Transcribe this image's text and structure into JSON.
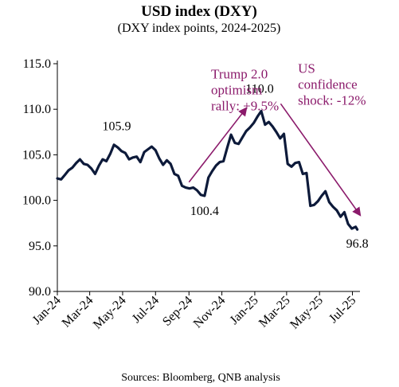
{
  "chart_data": {
    "type": "line",
    "title": "USD index (DXY)",
    "subtitle": "(DXY index points, 2024-2025)",
    "xlabel": "",
    "ylabel": "",
    "ylim": [
      90,
      115
    ],
    "yticks": [
      "90.0",
      "95.0",
      "100.0",
      "105.0",
      "110.0",
      "115.0"
    ],
    "xlim": [
      "2024-01-01",
      "2025-07-15"
    ],
    "xticks": [
      {
        "label": "Jan-24",
        "date": "2024-01-01"
      },
      {
        "label": "Mar-24",
        "date": "2024-03-01"
      },
      {
        "label": "May-24",
        "date": "2024-05-01"
      },
      {
        "label": "Jul-24",
        "date": "2024-07-01"
      },
      {
        "label": "Sep-24",
        "date": "2024-09-01"
      },
      {
        "label": "Nov-24",
        "date": "2024-11-01"
      },
      {
        "label": "Jan-25",
        "date": "2025-01-01"
      },
      {
        "label": "Mar-25",
        "date": "2025-03-01"
      },
      {
        "label": "May-25",
        "date": "2025-05-01"
      },
      {
        "label": "Jul-25",
        "date": "2025-07-01"
      }
    ],
    "grid": false,
    "line_color": "#0d1a3a",
    "annotation_color": "#8b1a6b",
    "series": [
      {
        "points": [
          [
            "2024-01-01",
            102.4
          ],
          [
            "2024-01-08",
            102.3
          ],
          [
            "2024-01-15",
            102.8
          ],
          [
            "2024-01-22",
            103.3
          ],
          [
            "2024-01-29",
            103.6
          ],
          [
            "2024-02-05",
            104.1
          ],
          [
            "2024-02-12",
            104.5
          ],
          [
            "2024-02-19",
            104.0
          ],
          [
            "2024-02-26",
            103.9
          ],
          [
            "2024-03-04",
            103.5
          ],
          [
            "2024-03-11",
            102.9
          ],
          [
            "2024-03-18",
            103.8
          ],
          [
            "2024-03-25",
            104.5
          ],
          [
            "2024-04-01",
            104.3
          ],
          [
            "2024-04-08",
            105.1
          ],
          [
            "2024-04-15",
            106.1
          ],
          [
            "2024-04-22",
            105.8
          ],
          [
            "2024-04-29",
            105.4
          ],
          [
            "2024-05-06",
            105.2
          ],
          [
            "2024-05-13",
            104.5
          ],
          [
            "2024-05-20",
            104.7
          ],
          [
            "2024-05-27",
            104.8
          ],
          [
            "2024-06-03",
            104.2
          ],
          [
            "2024-06-10",
            105.3
          ],
          [
            "2024-06-17",
            105.6
          ],
          [
            "2024-06-24",
            105.9
          ],
          [
            "2024-07-01",
            105.5
          ],
          [
            "2024-07-08",
            104.6
          ],
          [
            "2024-07-15",
            103.9
          ],
          [
            "2024-07-22",
            104.4
          ],
          [
            "2024-07-29",
            104.0
          ],
          [
            "2024-08-05",
            102.9
          ],
          [
            "2024-08-12",
            102.7
          ],
          [
            "2024-08-19",
            101.6
          ],
          [
            "2024-08-26",
            101.4
          ],
          [
            "2024-09-02",
            101.3
          ],
          [
            "2024-09-09",
            101.4
          ],
          [
            "2024-09-16",
            101.1
          ],
          [
            "2024-09-23",
            100.6
          ],
          [
            "2024-09-30",
            100.5
          ],
          [
            "2024-10-07",
            102.5
          ],
          [
            "2024-10-14",
            103.2
          ],
          [
            "2024-10-21",
            103.8
          ],
          [
            "2024-10-28",
            104.2
          ],
          [
            "2024-11-04",
            104.3
          ],
          [
            "2024-11-11",
            105.8
          ],
          [
            "2024-11-18",
            107.2
          ],
          [
            "2024-11-25",
            106.3
          ],
          [
            "2024-12-02",
            106.2
          ],
          [
            "2024-12-09",
            106.9
          ],
          [
            "2024-12-16",
            107.6
          ],
          [
            "2024-12-23",
            108.0
          ],
          [
            "2024-12-30",
            108.5
          ],
          [
            "2025-01-06",
            109.2
          ],
          [
            "2025-01-13",
            109.8
          ],
          [
            "2025-01-20",
            108.3
          ],
          [
            "2025-01-27",
            108.6
          ],
          [
            "2025-02-03",
            108.1
          ],
          [
            "2025-02-10",
            107.5
          ],
          [
            "2025-02-17",
            106.8
          ],
          [
            "2025-02-24",
            107.3
          ],
          [
            "2025-03-03",
            104.0
          ],
          [
            "2025-03-10",
            103.7
          ],
          [
            "2025-03-17",
            104.1
          ],
          [
            "2025-03-24",
            104.2
          ],
          [
            "2025-03-31",
            102.9
          ],
          [
            "2025-04-07",
            103.0
          ],
          [
            "2025-04-14",
            99.4
          ],
          [
            "2025-04-21",
            99.5
          ],
          [
            "2025-04-28",
            99.9
          ],
          [
            "2025-05-05",
            100.5
          ],
          [
            "2025-05-12",
            101.0
          ],
          [
            "2025-05-19",
            99.8
          ],
          [
            "2025-05-26",
            99.3
          ],
          [
            "2025-06-02",
            98.9
          ],
          [
            "2025-06-09",
            98.2
          ],
          [
            "2025-06-16",
            98.7
          ],
          [
            "2025-06-23",
            97.4
          ],
          [
            "2025-06-30",
            96.9
          ],
          [
            "2025-07-07",
            97.1
          ],
          [
            "2025-07-10",
            96.8
          ]
        ]
      }
    ],
    "annotations": [
      {
        "text": "105.9",
        "x": "2024-04-20",
        "y": 107.7,
        "color": "#000000"
      },
      {
        "text": "100.4",
        "x": "2024-09-30",
        "y": 98.4,
        "color": "#000000"
      },
      {
        "text": "110.0",
        "x": "2025-01-10",
        "y": 111.8,
        "color": "#000000"
      },
      {
        "text": "96.8",
        "x": "2025-07-10",
        "y": 94.8,
        "color": "#000000"
      },
      {
        "lines": [
          "Trump  2.0",
          "optimism",
          "rally: +9.5%"
        ],
        "x": "2024-10-12",
        "y": 113.4,
        "color": "#8b1a6b"
      },
      {
        "lines": [
          "US",
          "confidence",
          "shock: -12%"
        ],
        "x": "2025-03-22",
        "y": 114.0,
        "color": "#8b1a6b"
      }
    ],
    "arrows": [
      {
        "from": [
          "2024-09-01",
          102.0
        ],
        "to": [
          "2024-12-16",
          110.1
        ]
      },
      {
        "from": [
          "2025-02-18",
          110.6
        ],
        "to": [
          "2025-07-15",
          98.4
        ]
      }
    ]
  },
  "source": "Sources: Bloomberg, QNB analysis"
}
